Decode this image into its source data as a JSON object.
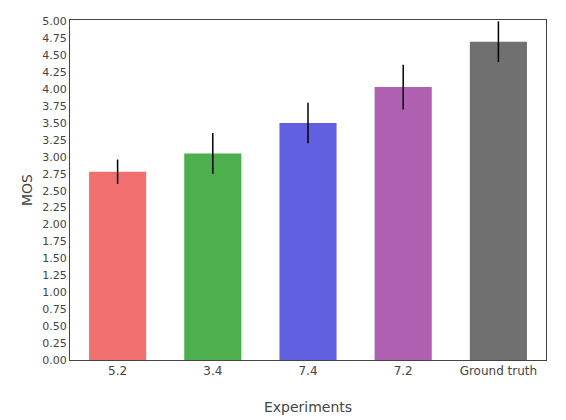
{
  "chart_data": {
    "type": "bar",
    "xlabel": "Experiments",
    "ylabel": "MOS",
    "categories": [
      "5.2",
      "3.4",
      "7.4",
      "7.2",
      "Ground truth"
    ],
    "values": [
      2.78,
      3.05,
      3.5,
      4.03,
      4.7
    ],
    "errors": [
      0.18,
      0.3,
      0.3,
      0.33,
      0.3
    ],
    "colors": [
      "#f07070",
      "#4daf4d",
      "#6060e0",
      "#b060b0",
      "#707070"
    ],
    "ylim": [
      0,
      5.02
    ],
    "yticks": [
      {
        "value": 0,
        "label": "0.00"
      },
      0.25,
      {
        "value": 0.5,
        "label": "0.50"
      },
      0.75,
      {
        "value": 1,
        "label": "1.00"
      },
      1.25,
      {
        "value": 1.5,
        "label": "1.50"
      },
      1.75,
      {
        "value": 2,
        "label": "2.00"
      },
      2.25,
      {
        "value": 2.5,
        "label": "2.50"
      },
      2.75,
      {
        "value": 3,
        "label": "3.00"
      },
      3.25,
      {
        "value": 3.5,
        "label": "3.50"
      },
      3.75,
      {
        "value": 4,
        "label": "4.00"
      },
      4.25,
      {
        "value": 4.5,
        "label": "4.50"
      },
      4.75,
      {
        "value": 5,
        "label": "5.00"
      }
    ],
    "grid": false
  }
}
